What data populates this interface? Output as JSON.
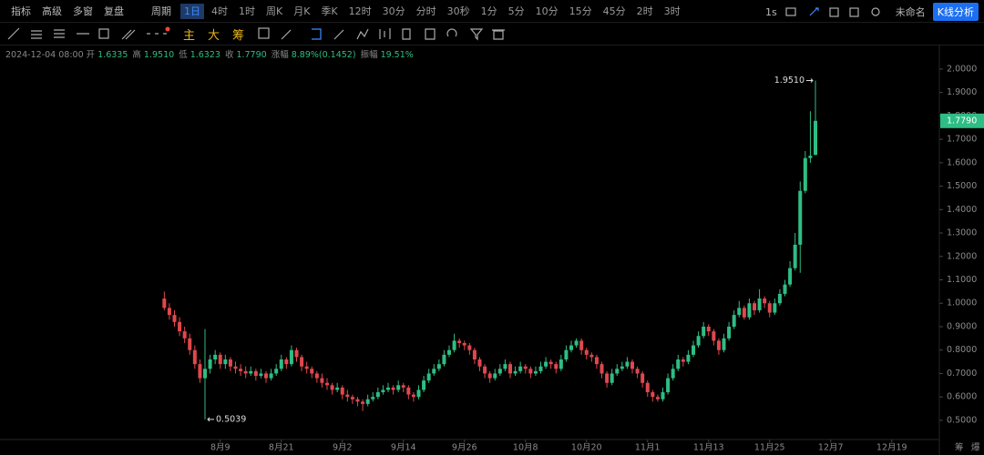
{
  "toolbar": {
    "left": [
      "指标",
      "高级",
      "多窗",
      "复盘"
    ],
    "period_label": "周期",
    "periods": [
      "1日",
      "4时",
      "1时",
      "周K",
      "月K",
      "季K",
      "12时",
      "30分",
      "分时",
      "30秒",
      "1分",
      "5分",
      "10分",
      "15分",
      "45分",
      "2时",
      "3时"
    ],
    "interval": "1s",
    "layout_name": "未命名",
    "analysis_button": "K线分析",
    "main_tools": [
      "主",
      "大",
      "筹"
    ],
    "bottom_right": [
      "筹",
      "爆"
    ]
  },
  "info": {
    "datetime": "2024-12-04 08:00",
    "fields": [
      {
        "label": "开",
        "value": "1.6335"
      },
      {
        "label": "高",
        "value": "1.9510"
      },
      {
        "label": "低",
        "value": "1.6323"
      },
      {
        "label": "收",
        "value": "1.7790"
      },
      {
        "label": "涨幅",
        "value": "8.89%(0.1452)"
      },
      {
        "label": "振幅",
        "value": "19.51%"
      }
    ]
  },
  "chart_data": {
    "type": "candlestick",
    "up_color": "#2ebd85",
    "down_color": "#e0484e",
    "ylim": [
      0.418,
      2.093
    ],
    "yticks": [
      {
        "value": 0.5,
        "label": "0.5000"
      },
      {
        "value": 0.6,
        "label": "0.6000"
      },
      {
        "value": 0.7,
        "label": "0.7000"
      },
      {
        "value": 0.8,
        "label": "0.8000"
      },
      {
        "value": 0.9,
        "label": "0.9000"
      },
      {
        "value": 1.0,
        "label": "1.0000"
      },
      {
        "value": 1.1,
        "label": "1.1000"
      },
      {
        "value": 1.2,
        "label": "1.2000"
      },
      {
        "value": 1.3,
        "label": "1.3000"
      },
      {
        "value": 1.4,
        "label": "1.4000"
      },
      {
        "value": 1.5,
        "label": "1.5000"
      },
      {
        "value": 1.6,
        "label": "1.6000"
      },
      {
        "value": 1.7,
        "label": "1.7000"
      },
      {
        "value": 1.8,
        "label": "1.8000"
      },
      {
        "value": 1.9,
        "label": "1.9000"
      },
      {
        "value": 2.0,
        "label": "2.0000"
      }
    ],
    "xlim": [
      -32.3,
      152
    ],
    "xticks": [
      {
        "value": 11,
        "label": "8月9"
      },
      {
        "value": 23,
        "label": "8月21"
      },
      {
        "value": 35,
        "label": "9月2"
      },
      {
        "value": 47,
        "label": "9月14"
      },
      {
        "value": 59,
        "label": "9月26"
      },
      {
        "value": 71,
        "label": "10月8"
      },
      {
        "value": 83,
        "label": "10月20"
      },
      {
        "value": 95,
        "label": "11月1"
      },
      {
        "value": 107,
        "label": "11月13"
      },
      {
        "value": 119,
        "label": "11月25"
      },
      {
        "value": 131,
        "label": "12月7"
      },
      {
        "value": 143,
        "label": "12月19"
      }
    ],
    "high_label": "1.9510",
    "low_label": "0.5039",
    "last_price_label": "1.7790",
    "ohlc": [
      [
        1.02,
        1.05,
        0.97,
        0.98
      ],
      [
        0.98,
        1.0,
        0.93,
        0.95
      ],
      [
        0.95,
        0.97,
        0.9,
        0.92
      ],
      [
        0.92,
        0.94,
        0.86,
        0.88
      ],
      [
        0.88,
        0.9,
        0.83,
        0.85
      ],
      [
        0.85,
        0.87,
        0.78,
        0.8
      ],
      [
        0.8,
        0.82,
        0.72,
        0.74
      ],
      [
        0.74,
        0.76,
        0.66,
        0.68
      ],
      [
        0.68,
        0.89,
        0.5039,
        0.72
      ],
      [
        0.72,
        0.78,
        0.7,
        0.76
      ],
      [
        0.76,
        0.8,
        0.74,
        0.78
      ],
      [
        0.78,
        0.79,
        0.72,
        0.74
      ],
      [
        0.74,
        0.78,
        0.72,
        0.76
      ],
      [
        0.76,
        0.77,
        0.71,
        0.73
      ],
      [
        0.73,
        0.75,
        0.7,
        0.72
      ],
      [
        0.72,
        0.74,
        0.69,
        0.71
      ],
      [
        0.71,
        0.73,
        0.68,
        0.7
      ],
      [
        0.7,
        0.73,
        0.69,
        0.71
      ],
      [
        0.71,
        0.72,
        0.67,
        0.69
      ],
      [
        0.69,
        0.72,
        0.68,
        0.7
      ],
      [
        0.7,
        0.71,
        0.66,
        0.68
      ],
      [
        0.68,
        0.72,
        0.67,
        0.7
      ],
      [
        0.7,
        0.74,
        0.69,
        0.72
      ],
      [
        0.72,
        0.78,
        0.71,
        0.76
      ],
      [
        0.76,
        0.77,
        0.72,
        0.74
      ],
      [
        0.74,
        0.82,
        0.73,
        0.8
      ],
      [
        0.8,
        0.81,
        0.75,
        0.77
      ],
      [
        0.77,
        0.78,
        0.71,
        0.73
      ],
      [
        0.73,
        0.75,
        0.7,
        0.72
      ],
      [
        0.72,
        0.73,
        0.68,
        0.7
      ],
      [
        0.7,
        0.71,
        0.66,
        0.68
      ],
      [
        0.68,
        0.7,
        0.64,
        0.66
      ],
      [
        0.66,
        0.68,
        0.63,
        0.65
      ],
      [
        0.65,
        0.66,
        0.61,
        0.63
      ],
      [
        0.63,
        0.66,
        0.62,
        0.64
      ],
      [
        0.64,
        0.65,
        0.59,
        0.61
      ],
      [
        0.61,
        0.63,
        0.58,
        0.6
      ],
      [
        0.6,
        0.61,
        0.57,
        0.59
      ],
      [
        0.59,
        0.6,
        0.56,
        0.58
      ],
      [
        0.58,
        0.59,
        0.54,
        0.57
      ],
      [
        0.57,
        0.61,
        0.56,
        0.59
      ],
      [
        0.59,
        0.62,
        0.58,
        0.6
      ],
      [
        0.6,
        0.64,
        0.59,
        0.62
      ],
      [
        0.62,
        0.65,
        0.61,
        0.63
      ],
      [
        0.63,
        0.66,
        0.62,
        0.64
      ],
      [
        0.64,
        0.65,
        0.61,
        0.63
      ],
      [
        0.63,
        0.67,
        0.62,
        0.65
      ],
      [
        0.65,
        0.66,
        0.62,
        0.64
      ],
      [
        0.64,
        0.65,
        0.59,
        0.61
      ],
      [
        0.61,
        0.62,
        0.58,
        0.6
      ],
      [
        0.6,
        0.65,
        0.59,
        0.63
      ],
      [
        0.63,
        0.69,
        0.62,
        0.67
      ],
      [
        0.67,
        0.72,
        0.66,
        0.7
      ],
      [
        0.7,
        0.74,
        0.69,
        0.72
      ],
      [
        0.72,
        0.76,
        0.71,
        0.74
      ],
      [
        0.74,
        0.8,
        0.73,
        0.78
      ],
      [
        0.78,
        0.82,
        0.77,
        0.8
      ],
      [
        0.8,
        0.87,
        0.79,
        0.84
      ],
      [
        0.84,
        0.85,
        0.81,
        0.83
      ],
      [
        0.83,
        0.84,
        0.8,
        0.82
      ],
      [
        0.82,
        0.83,
        0.78,
        0.8
      ],
      [
        0.8,
        0.81,
        0.74,
        0.76
      ],
      [
        0.76,
        0.77,
        0.71,
        0.73
      ],
      [
        0.73,
        0.74,
        0.68,
        0.7
      ],
      [
        0.7,
        0.71,
        0.66,
        0.68
      ],
      [
        0.68,
        0.72,
        0.67,
        0.7
      ],
      [
        0.7,
        0.74,
        0.69,
        0.72
      ],
      [
        0.72,
        0.76,
        0.71,
        0.74
      ],
      [
        0.74,
        0.75,
        0.68,
        0.7
      ],
      [
        0.7,
        0.73,
        0.69,
        0.71
      ],
      [
        0.71,
        0.75,
        0.7,
        0.73
      ],
      [
        0.73,
        0.74,
        0.7,
        0.72
      ],
      [
        0.72,
        0.73,
        0.68,
        0.7
      ],
      [
        0.7,
        0.73,
        0.69,
        0.71
      ],
      [
        0.71,
        0.75,
        0.7,
        0.73
      ],
      [
        0.73,
        0.77,
        0.72,
        0.75
      ],
      [
        0.75,
        0.76,
        0.72,
        0.74
      ],
      [
        0.74,
        0.75,
        0.7,
        0.72
      ],
      [
        0.72,
        0.78,
        0.71,
        0.76
      ],
      [
        0.76,
        0.82,
        0.75,
        0.8
      ],
      [
        0.8,
        0.84,
        0.79,
        0.82
      ],
      [
        0.82,
        0.85,
        0.81,
        0.84
      ],
      [
        0.84,
        0.85,
        0.78,
        0.8
      ],
      [
        0.8,
        0.81,
        0.76,
        0.78
      ],
      [
        0.78,
        0.79,
        0.75,
        0.77
      ],
      [
        0.77,
        0.78,
        0.72,
        0.74
      ],
      [
        0.74,
        0.75,
        0.68,
        0.7
      ],
      [
        0.7,
        0.71,
        0.64,
        0.66
      ],
      [
        0.66,
        0.72,
        0.65,
        0.7
      ],
      [
        0.7,
        0.74,
        0.69,
        0.72
      ],
      [
        0.72,
        0.75,
        0.71,
        0.73
      ],
      [
        0.73,
        0.77,
        0.72,
        0.75
      ],
      [
        0.75,
        0.76,
        0.7,
        0.72
      ],
      [
        0.72,
        0.73,
        0.68,
        0.7
      ],
      [
        0.7,
        0.71,
        0.64,
        0.66
      ],
      [
        0.66,
        0.67,
        0.6,
        0.62
      ],
      [
        0.62,
        0.63,
        0.58,
        0.6
      ],
      [
        0.6,
        0.61,
        0.58,
        0.59
      ],
      [
        0.59,
        0.64,
        0.58,
        0.62
      ],
      [
        0.62,
        0.7,
        0.61,
        0.68
      ],
      [
        0.68,
        0.74,
        0.67,
        0.72
      ],
      [
        0.72,
        0.78,
        0.71,
        0.76
      ],
      [
        0.76,
        0.77,
        0.73,
        0.75
      ],
      [
        0.75,
        0.8,
        0.74,
        0.78
      ],
      [
        0.78,
        0.84,
        0.77,
        0.82
      ],
      [
        0.82,
        0.88,
        0.81,
        0.86
      ],
      [
        0.86,
        0.92,
        0.85,
        0.9
      ],
      [
        0.9,
        0.91,
        0.86,
        0.88
      ],
      [
        0.88,
        0.89,
        0.82,
        0.84
      ],
      [
        0.84,
        0.85,
        0.78,
        0.8
      ],
      [
        0.8,
        0.87,
        0.79,
        0.85
      ],
      [
        0.85,
        0.92,
        0.84,
        0.9
      ],
      [
        0.9,
        0.97,
        0.89,
        0.95
      ],
      [
        0.95,
        1.01,
        0.94,
        0.98
      ],
      [
        0.98,
        0.99,
        0.93,
        0.94
      ],
      [
        0.94,
        1.02,
        0.93,
        1.0
      ],
      [
        1.0,
        1.01,
        0.95,
        0.97
      ],
      [
        0.97,
        1.06,
        0.96,
        1.02
      ],
      [
        1.02,
        1.03,
        0.98,
        1.0
      ],
      [
        1.0,
        1.01,
        0.94,
        0.96
      ],
      [
        0.96,
        1.02,
        0.95,
        1.0
      ],
      [
        1.0,
        1.06,
        0.99,
        1.04
      ],
      [
        1.04,
        1.1,
        1.03,
        1.08
      ],
      [
        1.08,
        1.18,
        1.07,
        1.15
      ],
      [
        1.15,
        1.3,
        1.14,
        1.25
      ],
      [
        1.25,
        1.52,
        1.13,
        1.48
      ],
      [
        1.48,
        1.65,
        1.47,
        1.62
      ],
      [
        1.62,
        1.82,
        1.6,
        1.63
      ],
      [
        1.6335,
        1.951,
        1.6323,
        1.779
      ]
    ]
  }
}
